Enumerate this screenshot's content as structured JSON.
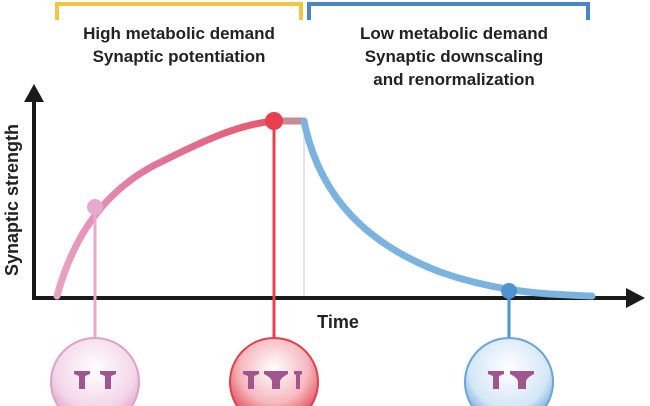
{
  "phases": {
    "high": {
      "line1": "High metabolic demand",
      "line2": "Synaptic potentiation",
      "bracket_color": "#f2c640"
    },
    "low": {
      "line1": "Low metabolic demand",
      "line2": "Synaptic downscaling",
      "line3": "and renormalization",
      "bracket_color": "#4a86c6"
    }
  },
  "axes": {
    "y_label": "Synaptic strength",
    "x_label": "Time"
  },
  "colors": {
    "axis": "#1a1a1a",
    "rise_start": "#e8a4c6",
    "rise_end": "#e8505f",
    "decay": "#7bb3e0",
    "marker_early": "#e7a9cf",
    "marker_peak": "#e8404f",
    "marker_late": "#4f93d2"
  },
  "markers": [
    {
      "phase": "early-potentiation",
      "synapses": [
        "small-synapse",
        "small-synapse"
      ]
    },
    {
      "phase": "peak-potentiation",
      "synapses": [
        "small-synapse",
        "large-synapse",
        "thin-synapse"
      ]
    },
    {
      "phase": "renormalized",
      "synapses": [
        "small-synapse",
        "small-synapse"
      ]
    }
  ]
}
